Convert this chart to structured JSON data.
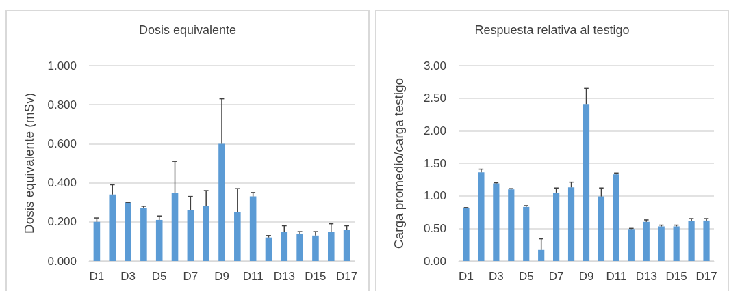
{
  "chart_data": [
    {
      "type": "bar",
      "title": "Dosis equivalente",
      "ylabel": "Dosis equivalente (mSv)",
      "categories": [
        "D1",
        null,
        "D3",
        null,
        "D5",
        null,
        "D7",
        null,
        "D9",
        null,
        "D11",
        null,
        "D13",
        null,
        "D15",
        null,
        "D17"
      ],
      "series": [
        {
          "color": "#5b9bd5",
          "values": [
            0.2,
            0.34,
            0.3,
            0.27,
            0.21,
            0.35,
            0.26,
            0.28,
            0.6,
            0.25,
            0.33,
            0.12,
            0.15,
            0.14,
            0.13,
            0.15,
            0.16
          ],
          "errors": [
            [
              0.2,
              0.22
            ],
            [
              0.34,
              0.39
            ],
            [
              0.3,
              0.3
            ],
            [
              0.27,
              0.28
            ],
            [
              0.21,
              0.23
            ],
            [
              0.35,
              0.51
            ],
            [
              0.26,
              0.33
            ],
            [
              0.28,
              0.36
            ],
            [
              0.6,
              0.83
            ],
            [
              0.25,
              0.37
            ],
            [
              0.33,
              0.35
            ],
            [
              0.12,
              0.13
            ],
            [
              0.15,
              0.18
            ],
            [
              0.14,
              0.15
            ],
            [
              0.13,
              0.15
            ],
            [
              0.15,
              0.19
            ],
            [
              0.16,
              0.18
            ]
          ]
        }
      ],
      "ylim": [
        0,
        1
      ],
      "yticks": [
        {
          "value": 0,
          "label": "0.000"
        },
        {
          "value": 0.2,
          "label": "0.200"
        },
        {
          "value": 0.4,
          "label": "0.400"
        },
        {
          "value": 0.6,
          "label": "0.600"
        },
        {
          "value": 0.8,
          "label": "0.800"
        },
        {
          "value": 1,
          "label": "1.000"
        }
      ],
      "grid": "y"
    },
    {
      "type": "bar",
      "title": "Respuesta relativa al testigo",
      "ylabel": "Carga promedio/carga testigo",
      "categories": [
        "D1",
        null,
        "D3",
        null,
        "D5",
        null,
        "D7",
        null,
        "D9",
        null,
        "D11",
        null,
        "D13",
        null,
        "D15",
        null,
        "D17"
      ],
      "series": [
        {
          "color": "#5b9bd5",
          "values": [
            0.81,
            1.36,
            1.19,
            1.1,
            0.83,
            0.17,
            1.05,
            1.13,
            2.41,
            0.99,
            1.33,
            0.49,
            0.6,
            0.53,
            0.53,
            0.61,
            0.62
          ],
          "errors": [
            [
              0.81,
              0.82
            ],
            [
              1.36,
              1.41
            ],
            [
              1.19,
              1.2
            ],
            [
              1.1,
              1.11
            ],
            [
              0.83,
              0.85
            ],
            [
              0.17,
              0.34
            ],
            [
              1.05,
              1.12
            ],
            [
              1.13,
              1.21
            ],
            [
              2.41,
              2.65
            ],
            [
              0.99,
              1.12
            ],
            [
              1.33,
              1.35
            ],
            [
              0.49,
              0.5
            ],
            [
              0.6,
              0.63
            ],
            [
              0.53,
              0.55
            ],
            [
              0.53,
              0.55
            ],
            [
              0.61,
              0.65
            ],
            [
              0.62,
              0.65
            ]
          ]
        }
      ],
      "ylim": [
        0,
        3
      ],
      "yticks": [
        {
          "value": 0,
          "label": "0.00"
        },
        {
          "value": 0.5,
          "label": "0.50"
        },
        {
          "value": 1,
          "label": "1.00"
        },
        {
          "value": 1.5,
          "label": "1.50"
        },
        {
          "value": 2,
          "label": "2.00"
        },
        {
          "value": 2.5,
          "label": "2.50"
        },
        {
          "value": 3,
          "label": "3.00"
        }
      ],
      "grid": "y"
    }
  ]
}
